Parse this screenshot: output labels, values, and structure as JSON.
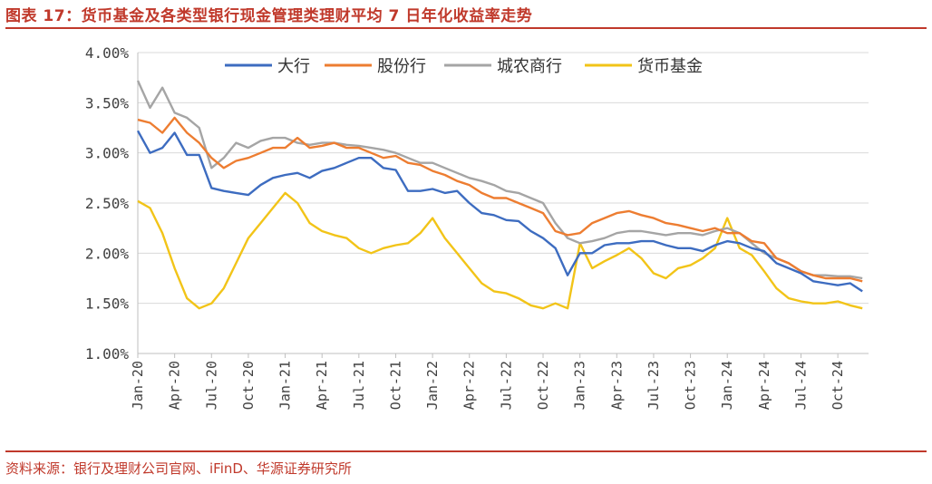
{
  "title": "图表 17：货币基金及各类型银行现金管理类理财平均 7 日年化收益率走势",
  "source": "资料来源：银行及理财公司官网、iFinD、华源证券研究所",
  "colors": {
    "title": "#c0392b",
    "大行": "#3d6cc0",
    "股份行": "#ed7d31",
    "城农商行": "#a5a5a5",
    "货币基金": "#f2c418"
  },
  "chart_data": {
    "type": "line",
    "ylim": [
      1.0,
      4.0
    ],
    "yticks": [
      "4.00%",
      "3.50%",
      "3.00%",
      "2.50%",
      "2.00%",
      "1.50%",
      "1.00%"
    ],
    "ytick_values": [
      4.0,
      3.5,
      3.0,
      2.5,
      2.0,
      1.5,
      1.0
    ],
    "xticks": [
      "Jan-20",
      "Apr-20",
      "Jul-20",
      "Oct-20",
      "Jan-21",
      "Apr-21",
      "Jul-21",
      "Oct-21",
      "Jan-22",
      "Apr-22",
      "Jul-22",
      "Oct-22",
      "Jan-23",
      "Apr-23",
      "Jul-23",
      "Oct-23",
      "Jan-24",
      "Apr-24",
      "Jul-24",
      "Oct-24"
    ],
    "legend_position": "top-center",
    "grid": true,
    "series": [
      {
        "name": "大行",
        "x": [
          "2020-01",
          "2020-02",
          "2020-03",
          "2020-04",
          "2020-05",
          "2020-06",
          "2020-07",
          "2020-08",
          "2020-09",
          "2020-10",
          "2020-11",
          "2020-12",
          "2021-01",
          "2021-02",
          "2021-03",
          "2021-04",
          "2021-05",
          "2021-06",
          "2021-07",
          "2021-08",
          "2021-09",
          "2021-10",
          "2021-11",
          "2021-12",
          "2022-01",
          "2022-02",
          "2022-03",
          "2022-04",
          "2022-05",
          "2022-06",
          "2022-07",
          "2022-08",
          "2022-09",
          "2022-10",
          "2022-11",
          "2022-12",
          "2023-01",
          "2023-02",
          "2023-03",
          "2023-04",
          "2023-05",
          "2023-06",
          "2023-07",
          "2023-08",
          "2023-09",
          "2023-10",
          "2023-11",
          "2023-12",
          "2024-01",
          "2024-02",
          "2024-03",
          "2024-04",
          "2024-05",
          "2024-06",
          "2024-07",
          "2024-08",
          "2024-09",
          "2024-10",
          "2024-11",
          "2024-12"
        ],
        "values": [
          3.22,
          3.0,
          3.05,
          3.2,
          2.98,
          2.98,
          2.65,
          2.62,
          2.6,
          2.58,
          2.68,
          2.75,
          2.78,
          2.8,
          2.75,
          2.82,
          2.85,
          2.9,
          2.95,
          2.95,
          2.85,
          2.83,
          2.62,
          2.62,
          2.64,
          2.6,
          2.62,
          2.5,
          2.4,
          2.38,
          2.33,
          2.32,
          2.22,
          2.15,
          2.05,
          1.78,
          2.0,
          2.0,
          2.08,
          2.1,
          2.1,
          2.12,
          2.12,
          2.08,
          2.05,
          2.05,
          2.02,
          2.08,
          2.12,
          2.1,
          2.05,
          2.02,
          1.9,
          1.85,
          1.8,
          1.72,
          1.7,
          1.68,
          1.7,
          1.62
        ]
      },
      {
        "name": "股份行",
        "x": [
          "2020-01",
          "2020-02",
          "2020-03",
          "2020-04",
          "2020-05",
          "2020-06",
          "2020-07",
          "2020-08",
          "2020-09",
          "2020-10",
          "2020-11",
          "2020-12",
          "2021-01",
          "2021-02",
          "2021-03",
          "2021-04",
          "2021-05",
          "2021-06",
          "2021-07",
          "2021-08",
          "2021-09",
          "2021-10",
          "2021-11",
          "2021-12",
          "2022-01",
          "2022-02",
          "2022-03",
          "2022-04",
          "2022-05",
          "2022-06",
          "2022-07",
          "2022-08",
          "2022-09",
          "2022-10",
          "2022-11",
          "2022-12",
          "2023-01",
          "2023-02",
          "2023-03",
          "2023-04",
          "2023-05",
          "2023-06",
          "2023-07",
          "2023-08",
          "2023-09",
          "2023-10",
          "2023-11",
          "2023-12",
          "2024-01",
          "2024-02",
          "2024-03",
          "2024-04",
          "2024-05",
          "2024-06",
          "2024-07",
          "2024-08",
          "2024-09",
          "2024-10",
          "2024-11",
          "2024-12"
        ],
        "values": [
          3.33,
          3.3,
          3.2,
          3.35,
          3.2,
          3.1,
          2.95,
          2.85,
          2.92,
          2.95,
          3.0,
          3.05,
          3.05,
          3.15,
          3.05,
          3.07,
          3.1,
          3.05,
          3.05,
          3.0,
          2.95,
          2.97,
          2.9,
          2.88,
          2.82,
          2.78,
          2.72,
          2.68,
          2.6,
          2.55,
          2.55,
          2.5,
          2.45,
          2.4,
          2.22,
          2.18,
          2.2,
          2.3,
          2.35,
          2.4,
          2.42,
          2.38,
          2.35,
          2.3,
          2.28,
          2.25,
          2.22,
          2.25,
          2.2,
          2.2,
          2.12,
          2.1,
          1.95,
          1.9,
          1.82,
          1.78,
          1.75,
          1.75,
          1.75,
          1.72
        ]
      },
      {
        "name": "城农商行",
        "x": [
          "2020-01",
          "2020-02",
          "2020-03",
          "2020-04",
          "2020-05",
          "2020-06",
          "2020-07",
          "2020-08",
          "2020-09",
          "2020-10",
          "2020-11",
          "2020-12",
          "2021-01",
          "2021-02",
          "2021-03",
          "2021-04",
          "2021-05",
          "2021-06",
          "2021-07",
          "2021-08",
          "2021-09",
          "2021-10",
          "2021-11",
          "2021-12",
          "2022-01",
          "2022-02",
          "2022-03",
          "2022-04",
          "2022-05",
          "2022-06",
          "2022-07",
          "2022-08",
          "2022-09",
          "2022-10",
          "2022-11",
          "2022-12",
          "2023-01",
          "2023-02",
          "2023-03",
          "2023-04",
          "2023-05",
          "2023-06",
          "2023-07",
          "2023-08",
          "2023-09",
          "2023-10",
          "2023-11",
          "2023-12",
          "2024-01",
          "2024-02",
          "2024-03",
          "2024-04",
          "2024-05",
          "2024-06",
          "2024-07",
          "2024-08",
          "2024-09",
          "2024-10",
          "2024-11",
          "2024-12"
        ],
        "values": [
          3.72,
          3.45,
          3.65,
          3.4,
          3.35,
          3.25,
          2.85,
          2.95,
          3.1,
          3.05,
          3.12,
          3.15,
          3.15,
          3.1,
          3.08,
          3.1,
          3.1,
          3.08,
          3.07,
          3.05,
          3.03,
          3.0,
          2.95,
          2.9,
          2.9,
          2.85,
          2.8,
          2.75,
          2.72,
          2.68,
          2.62,
          2.6,
          2.55,
          2.5,
          2.3,
          2.15,
          2.1,
          2.12,
          2.15,
          2.2,
          2.22,
          2.22,
          2.2,
          2.18,
          2.2,
          2.2,
          2.18,
          2.22,
          2.25,
          2.2,
          2.1,
          2.0,
          1.95,
          1.9,
          1.82,
          1.78,
          1.78,
          1.77,
          1.77,
          1.75
        ]
      },
      {
        "name": "货币基金",
        "x": [
          "2020-01",
          "2020-02",
          "2020-03",
          "2020-04",
          "2020-05",
          "2020-06",
          "2020-07",
          "2020-08",
          "2020-09",
          "2020-10",
          "2020-11",
          "2020-12",
          "2021-01",
          "2021-02",
          "2021-03",
          "2021-04",
          "2021-05",
          "2021-06",
          "2021-07",
          "2021-08",
          "2021-09",
          "2021-10",
          "2021-11",
          "2021-12",
          "2022-01",
          "2022-02",
          "2022-03",
          "2022-04",
          "2022-05",
          "2022-06",
          "2022-07",
          "2022-08",
          "2022-09",
          "2022-10",
          "2022-11",
          "2022-12",
          "2023-01",
          "2023-02",
          "2023-03",
          "2023-04",
          "2023-05",
          "2023-06",
          "2023-07",
          "2023-08",
          "2023-09",
          "2023-10",
          "2023-11",
          "2023-12",
          "2024-01",
          "2024-02",
          "2024-03",
          "2024-04",
          "2024-05",
          "2024-06",
          "2024-07",
          "2024-08",
          "2024-09",
          "2024-10",
          "2024-11",
          "2024-12"
        ],
        "values": [
          2.52,
          2.45,
          2.2,
          1.85,
          1.55,
          1.45,
          1.5,
          1.65,
          1.9,
          2.15,
          2.3,
          2.45,
          2.6,
          2.5,
          2.3,
          2.22,
          2.18,
          2.15,
          2.05,
          2.0,
          2.05,
          2.08,
          2.1,
          2.2,
          2.35,
          2.15,
          2.0,
          1.85,
          1.7,
          1.62,
          1.6,
          1.55,
          1.48,
          1.45,
          1.5,
          1.45,
          2.1,
          1.85,
          1.92,
          1.98,
          2.05,
          1.95,
          1.8,
          1.75,
          1.85,
          1.88,
          1.95,
          2.05,
          2.35,
          2.05,
          1.98,
          1.82,
          1.65,
          1.55,
          1.52,
          1.5,
          1.5,
          1.52,
          1.48,
          1.45
        ]
      }
    ]
  }
}
